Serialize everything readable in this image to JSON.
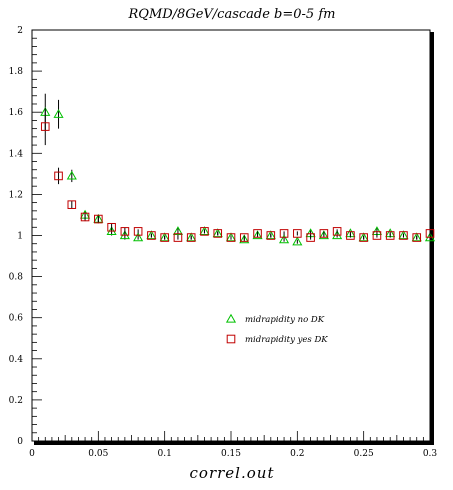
{
  "chart_data": {
    "type": "scatter",
    "title": "RQMD/8GeV/cascade b=0-5 fm",
    "xlabel": "correl.out",
    "ylabel": "",
    "xlim": [
      0,
      0.3
    ],
    "ylim": [
      0,
      2
    ],
    "x_ticks": [
      "0",
      "0.05",
      "0.1",
      "0.15",
      "0.2",
      "0.25",
      "0.3"
    ],
    "y_ticks": [
      "0",
      "0.2",
      "0.4",
      "0.6",
      "0.8",
      "1",
      "1.2",
      "1.4",
      "1.6",
      "1.8",
      "2"
    ],
    "grid": false,
    "legend_placement": "center-right",
    "series": [
      {
        "name": "midrapidity no DK",
        "marker": "triangle-open",
        "color": "#00c000",
        "x": [
          0.01,
          0.02,
          0.03,
          0.04,
          0.05,
          0.06,
          0.07,
          0.08,
          0.09,
          0.1,
          0.11,
          0.12,
          0.13,
          0.14,
          0.15,
          0.16,
          0.17,
          0.18,
          0.19,
          0.2,
          0.21,
          0.22,
          0.23,
          0.24,
          0.25,
          0.26,
          0.27,
          0.28,
          0.29,
          0.3
        ],
        "y": [
          1.6,
          1.59,
          1.29,
          1.1,
          1.08,
          1.02,
          1.0,
          0.99,
          1.0,
          0.99,
          1.02,
          0.99,
          1.02,
          1.01,
          0.99,
          0.98,
          1.0,
          1.0,
          0.98,
          0.97,
          1.01,
          1.0,
          1.0,
          1.01,
          0.99,
          1.02,
          1.01,
          1.0,
          0.99,
          0.99
        ],
        "yerr": [
          0.09,
          0.07,
          0.03,
          0.02,
          0.02,
          0.02,
          0.02,
          0.01,
          0.01,
          0.01,
          0.02,
          0.01,
          0.01,
          0.01,
          0.01,
          0.01,
          0.01,
          0.01,
          0.01,
          0.01,
          0.02,
          0.01,
          0.01,
          0.01,
          0.01,
          0.02,
          0.01,
          0.01,
          0.01,
          0.01
        ]
      },
      {
        "name": "midrapidity yes DK",
        "marker": "square-open",
        "color": "#c00000",
        "x": [
          0.01,
          0.02,
          0.03,
          0.04,
          0.05,
          0.06,
          0.07,
          0.08,
          0.09,
          0.1,
          0.11,
          0.12,
          0.13,
          0.14,
          0.15,
          0.16,
          0.17,
          0.18,
          0.19,
          0.2,
          0.21,
          0.22,
          0.23,
          0.24,
          0.25,
          0.26,
          0.27,
          0.28,
          0.29,
          0.3
        ],
        "y": [
          1.53,
          1.29,
          1.15,
          1.09,
          1.08,
          1.04,
          1.02,
          1.02,
          1.0,
          0.99,
          0.99,
          0.99,
          1.02,
          1.01,
          0.99,
          0.99,
          1.01,
          1.0,
          1.01,
          1.01,
          0.99,
          1.01,
          1.02,
          1.0,
          0.99,
          1.0,
          1.0,
          1.0,
          0.99,
          1.01
        ],
        "yerr": [
          0.09,
          0.04,
          0.02,
          0.02,
          0.02,
          0.02,
          0.02,
          0.01,
          0.01,
          0.01,
          0.01,
          0.01,
          0.01,
          0.01,
          0.01,
          0.01,
          0.01,
          0.01,
          0.01,
          0.01,
          0.01,
          0.01,
          0.01,
          0.01,
          0.01,
          0.01,
          0.01,
          0.01,
          0.01,
          0.01
        ]
      }
    ]
  }
}
